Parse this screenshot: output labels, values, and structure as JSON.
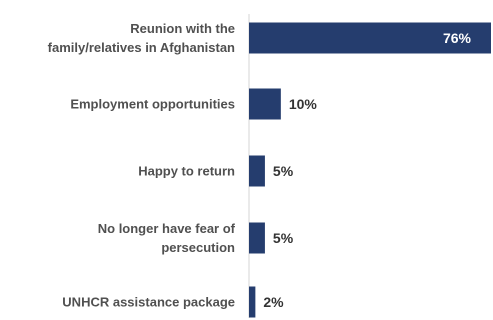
{
  "chart_data": {
    "type": "bar",
    "orientation": "horizontal",
    "categories": [
      "Reunion with the family/relatives in Afghanistan",
      "Employment opportunities",
      "Happy to return",
      "No longer have fear of persecution",
      "UNHCR assistance package"
    ],
    "category_lines": [
      [
        "Reunion with the",
        "family/relatives in Afghanistan"
      ],
      [
        "Employment opportunities"
      ],
      [
        "Happy to return"
      ],
      [
        "No longer have fear of",
        "persecution"
      ],
      [
        "UNHCR assistance package"
      ]
    ],
    "values": [
      76,
      10,
      5,
      5,
      2
    ],
    "value_labels": [
      "76%",
      "10%",
      "5%",
      "5%",
      "2%"
    ],
    "unit": "%",
    "xlim": [
      0,
      76
    ],
    "grid": false,
    "title": "",
    "xlabel": "",
    "ylabel": "",
    "colors": {
      "bar": "#253d6e"
    }
  }
}
